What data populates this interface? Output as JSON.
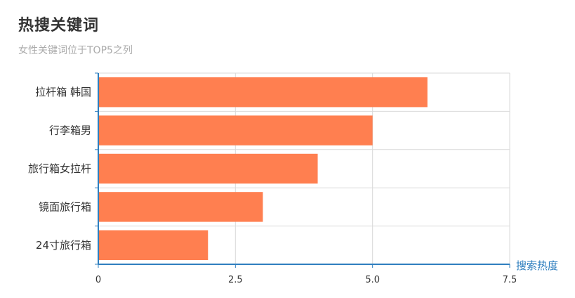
{
  "chart_data": {
    "type": "bar",
    "orientation": "horizontal",
    "title": "热搜关键词",
    "subtitle": "女性关键词位于TOP5之列",
    "categories": [
      "拉杆箱 韩国",
      "行李箱男",
      "旅行箱女拉杆",
      "镜面旅行箱",
      "24寸旅行箱"
    ],
    "values": [
      6,
      5,
      4,
      3,
      2
    ],
    "xlabel": "搜索热度",
    "ylabel": "",
    "xlim": [
      0,
      7.5
    ],
    "x_ticks": [
      "0",
      "2.5",
      "5.0",
      "7.5"
    ],
    "x_tick_values": [
      0,
      2.5,
      5.0,
      7.5
    ],
    "grid": true,
    "legend": "none"
  },
  "colors": {
    "bar": "#ff7f50",
    "axis": "#2f7fbf",
    "axis_name": "#2f7fbf",
    "grid": "#d9d9d9",
    "title": "#333333",
    "subtitle": "#aaaaaa"
  }
}
